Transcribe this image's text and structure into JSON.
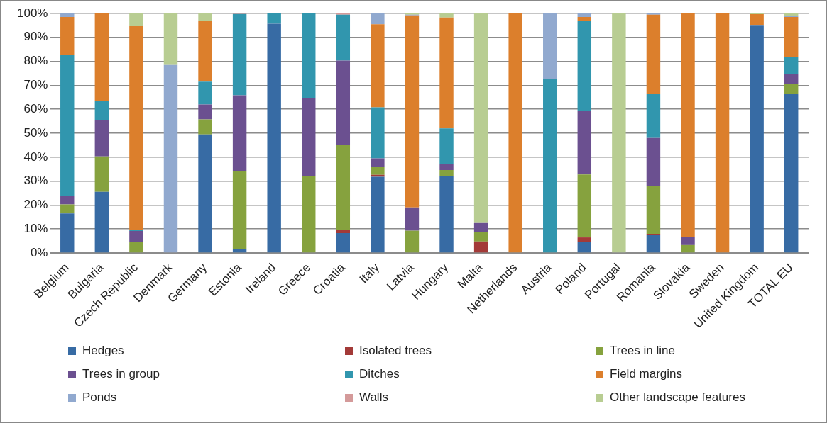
{
  "chart_data": {
    "type": "bar",
    "stacked": true,
    "grid": "y",
    "legend": "bottom",
    "categories": [
      "Belgium",
      "Bulgaria",
      "Czech Republic",
      "Denmark",
      "Germany",
      "Estonia",
      "Ireland",
      "Greece",
      "Croatia",
      "Italy",
      "Latvia",
      "Hungary",
      "Malta",
      "Netherlands",
      "Austria",
      "Poland",
      "Portugal",
      "Romania",
      "Slovakia",
      "Sweden",
      "United Kingdom",
      "TOTAL EU"
    ],
    "ylim": [
      0,
      100
    ],
    "yticks": [
      {
        "value": 0,
        "label": "0%"
      },
      {
        "value": 10,
        "label": "10%"
      },
      {
        "value": 20,
        "label": "20%"
      },
      {
        "value": 30,
        "label": "30%"
      },
      {
        "value": 40,
        "label": "40%"
      },
      {
        "value": 50,
        "label": "50%"
      },
      {
        "value": 60,
        "label": "60%"
      },
      {
        "value": 70,
        "label": "70%"
      },
      {
        "value": 80,
        "label": "80%"
      },
      {
        "value": 90,
        "label": "90%"
      },
      {
        "value": 100,
        "label": "100%"
      }
    ],
    "series": [
      {
        "name": "Hedges",
        "color": "#376ba4",
        "values": [
          16.5,
          25.5,
          0,
          0,
          49.5,
          1.7,
          95.7,
          0,
          8.3,
          31.8,
          0,
          32,
          0,
          0,
          0,
          4.5,
          0,
          7.5,
          0,
          0,
          95.2,
          66.5
        ]
      },
      {
        "name": "Isolated trees",
        "color": "#a33a38",
        "values": [
          0,
          0,
          0,
          0,
          0,
          0,
          0,
          0,
          1.3,
          0.8,
          0,
          0,
          4.8,
          0,
          0,
          2,
          0,
          0.5,
          0,
          0,
          0,
          0
        ]
      },
      {
        "name": "Trees in line",
        "color": "#86a23e",
        "values": [
          3.8,
          14.8,
          4.5,
          0,
          6.3,
          32.3,
          0,
          32.2,
          35.4,
          3.4,
          9.3,
          2.6,
          3.9,
          0,
          0,
          26.3,
          0,
          20,
          3.3,
          0,
          0,
          4
        ]
      },
      {
        "name": "Trees in group",
        "color": "#6b5090",
        "values": [
          3.7,
          15,
          4.7,
          0,
          6.2,
          31.8,
          0,
          32.6,
          35.3,
          3.5,
          9.7,
          2.6,
          3.8,
          0,
          0,
          26.7,
          0,
          20,
          3.5,
          0,
          0,
          4.3
        ]
      },
      {
        "name": "Ditches",
        "color": "#3196ae",
        "values": [
          58.8,
          8,
          0.3,
          0,
          9.5,
          34,
          4.3,
          35.2,
          19.2,
          21.3,
          0,
          14.8,
          0,
          0,
          72.8,
          37.5,
          0,
          18.3,
          0,
          0,
          0,
          6.9
        ]
      },
      {
        "name": "Field margins",
        "color": "#dc7f2c",
        "values": [
          15.7,
          36.7,
          85.3,
          0,
          25.5,
          0,
          0,
          0,
          0,
          34.7,
          80.2,
          46.3,
          0,
          100,
          0,
          1.5,
          0,
          33.2,
          93.2,
          100,
          4.5,
          16.8
        ]
      },
      {
        "name": "Ponds",
        "color": "#91a9cf",
        "values": [
          1.5,
          0,
          0,
          78.5,
          0,
          0,
          0,
          0,
          0,
          4.5,
          0.3,
          0,
          0,
          0,
          27.2,
          1.5,
          0,
          0.5,
          0,
          0,
          0,
          0.3
        ]
      },
      {
        "name": "Walls",
        "color": "#d49a9a",
        "values": [
          0,
          0,
          0,
          0,
          0,
          0.2,
          0,
          0,
          0.5,
          0,
          0,
          0,
          0,
          0,
          0,
          0,
          0,
          0,
          0,
          0,
          0,
          0
        ]
      },
      {
        "name": "Other landscape features",
        "color": "#b8cd92",
        "values": [
          0,
          0,
          5.2,
          21.5,
          3,
          0,
          0,
          0,
          0,
          0,
          0.5,
          1.7,
          87.5,
          0,
          0,
          0,
          100,
          0,
          0,
          0,
          0.3,
          1.2
        ]
      }
    ]
  }
}
